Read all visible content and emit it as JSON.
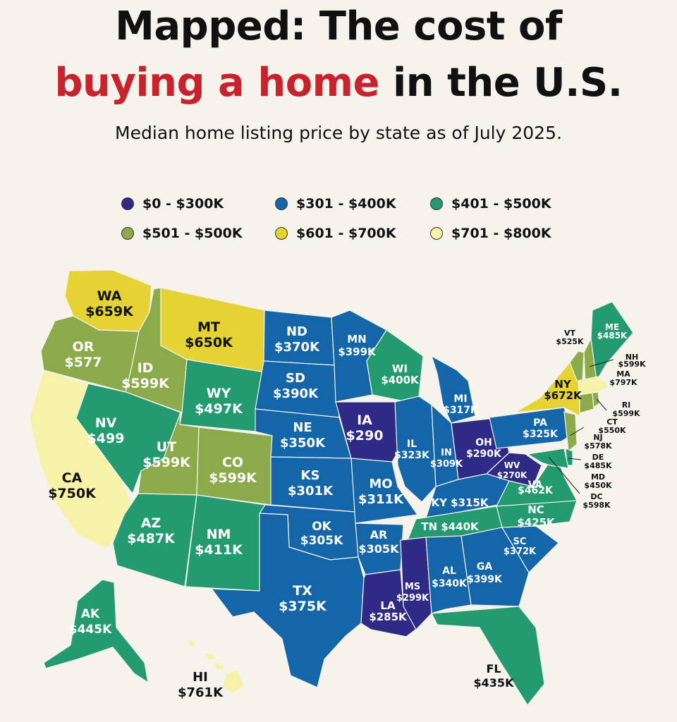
{
  "title": {
    "line1": "Mapped: The cost of",
    "line2_highlight": "buying a home",
    "line2_rest": " in the U.S."
  },
  "subtitle": "Median home listing price by state as of July 2025.",
  "legend": [
    {
      "label": "$0 - $300K",
      "color": "#2e2a86"
    },
    {
      "label": "$301 - $400K",
      "color": "#1566a8"
    },
    {
      "label": "$401 - $500K",
      "color": "#239a70"
    },
    {
      "label": "$501 - $500K",
      "color": "#8bab4a"
    },
    {
      "label": "$601 - $700K",
      "color": "#e5d334"
    },
    {
      "label": "$701 - $800K",
      "color": "#f6f2a8"
    }
  ],
  "states": [
    {
      "abbr": "WA",
      "value": "$659K"
    },
    {
      "abbr": "OR",
      "value": "$577"
    },
    {
      "abbr": "CA",
      "value": "$750K"
    },
    {
      "abbr": "ID",
      "value": "$599K"
    },
    {
      "abbr": "NV",
      "value": "$499"
    },
    {
      "abbr": "MT",
      "value": "$650K"
    },
    {
      "abbr": "WY",
      "value": "$497K"
    },
    {
      "abbr": "UT",
      "value": "$599K"
    },
    {
      "abbr": "CO",
      "value": "$599K"
    },
    {
      "abbr": "AZ",
      "value": "$487K"
    },
    {
      "abbr": "NM",
      "value": "$411K"
    },
    {
      "abbr": "ND",
      "value": "$370K"
    },
    {
      "abbr": "SD",
      "value": "$390K"
    },
    {
      "abbr": "NE",
      "value": "$350K"
    },
    {
      "abbr": "KS",
      "value": "$301K"
    },
    {
      "abbr": "OK",
      "value": "$305K"
    },
    {
      "abbr": "TX",
      "value": "$375K"
    },
    {
      "abbr": "MN",
      "value": "$399K"
    },
    {
      "abbr": "IA",
      "value": "$290"
    },
    {
      "abbr": "MO",
      "value": "$311K"
    },
    {
      "abbr": "AR",
      "value": "$305K"
    },
    {
      "abbr": "LA",
      "value": "$285K"
    },
    {
      "abbr": "WI",
      "value": "$400K"
    },
    {
      "abbr": "IL",
      "value": "$323K"
    },
    {
      "abbr": "MI",
      "value": "$317K"
    },
    {
      "abbr": "IN",
      "value": "$309K"
    },
    {
      "abbr": "OH",
      "value": "$290K"
    },
    {
      "abbr": "KY",
      "value": "$315K"
    },
    {
      "abbr": "TN",
      "value": "$440K"
    },
    {
      "abbr": "MS",
      "value": "$299K"
    },
    {
      "abbr": "AL",
      "value": "$340K"
    },
    {
      "abbr": "GA",
      "value": "$399K"
    },
    {
      "abbr": "FL",
      "value": "$435K"
    },
    {
      "abbr": "SC",
      "value": "$372K"
    },
    {
      "abbr": "NC",
      "value": "$425K"
    },
    {
      "abbr": "VA",
      "value": "$462K"
    },
    {
      "abbr": "WV",
      "value": "$270K"
    },
    {
      "abbr": "PA",
      "value": "$325K"
    },
    {
      "abbr": "NY",
      "value": "$672K"
    },
    {
      "abbr": "VT",
      "value": "$525K"
    },
    {
      "abbr": "ME",
      "value": "$485K"
    },
    {
      "abbr": "NH",
      "value": "$599K"
    },
    {
      "abbr": "MA",
      "value": "$797K"
    },
    {
      "abbr": "RI",
      "value": "$599K"
    },
    {
      "abbr": "CT",
      "value": "$550K"
    },
    {
      "abbr": "NJ",
      "value": "$578K"
    },
    {
      "abbr": "DE",
      "value": "$485K"
    },
    {
      "abbr": "MD",
      "value": "$450K"
    },
    {
      "abbr": "DC",
      "value": "$598K"
    },
    {
      "abbr": "AK",
      "value": "$445K"
    },
    {
      "abbr": "HI",
      "value": "$761K"
    }
  ]
}
